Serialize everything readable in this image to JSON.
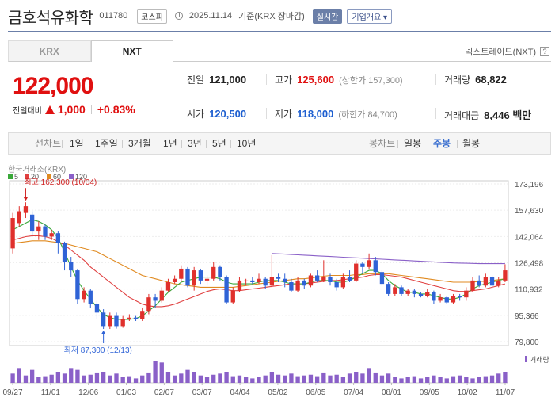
{
  "header": {
    "name": "금호석유화학",
    "code": "011780",
    "market": "코스피",
    "date": "2025.11.14",
    "basis": "기준(KRX 장마감)",
    "realtime": "실시간",
    "company_info": "기업개요 ▾"
  },
  "tabs": [
    {
      "label": "KRX"
    },
    {
      "label": "NXT"
    }
  ],
  "nxt_label": "넥스트레이드(NXT)",
  "help": "?",
  "price": {
    "current": "122,000",
    "change_label": "전일대비",
    "change": "1,000",
    "change_pct": "+0.83%"
  },
  "stats": {
    "prev_label": "전일",
    "prev": "121,000",
    "high_label": "고가",
    "high": "125,600",
    "upper_limit": "(상한가 157,300)",
    "volume_label": "거래량",
    "volume": "68,822",
    "open_label": "시가",
    "open": "120,500",
    "low_label": "저가",
    "low": "118,000",
    "lower_limit": "(하한가 84,700)",
    "amount_label": "거래대금",
    "amount": "8,446 백만"
  },
  "period": {
    "line_label": "선차트",
    "items": [
      "1일",
      "1주일",
      "3개월",
      "1년",
      "3년",
      "5년",
      "10년"
    ],
    "candle_label": "봉차트",
    "candle_items": [
      "일봉",
      "주봉",
      "월봉"
    ],
    "candle_selected": "주봉"
  },
  "colors": {
    "up": "#e0302c",
    "down": "#2f63d6",
    "ma5": "#3aa83a",
    "ma20": "#e04040",
    "ma60": "#e08a20",
    "ma120": "#8a60c8",
    "volume": "#8a60c8",
    "accent": "#6b7fa8"
  },
  "chart_data": {
    "type": "candlestick",
    "source_label": "한국거래소(KRX)",
    "legend": [
      "5",
      "20",
      "60",
      "120"
    ],
    "y_ticks": [
      "173,196",
      "157,630",
      "142,064",
      "126,498",
      "110,932",
      "95,366",
      "79,800"
    ],
    "ylim": [
      79800,
      173196
    ],
    "x_ticks": [
      "09/27",
      "11/01",
      "12/06",
      "01/03",
      "02/07",
      "03/07",
      "04/04",
      "05/02",
      "06/05",
      "07/04",
      "08/01",
      "09/05",
      "10/02",
      "11/07"
    ],
    "high_label": "최고 162,300 (10/04)",
    "low_label": "최저 87,300 (12/13)",
    "volume_label": "거래량",
    "candles": [
      [
        135000,
        153000,
        132000,
        156000
      ],
      [
        150000,
        157000,
        148000,
        160000
      ],
      [
        156000,
        160000,
        153000,
        162300
      ],
      [
        155000,
        145000,
        143000,
        157000
      ],
      [
        145000,
        148000,
        140000,
        151000
      ],
      [
        148000,
        142000,
        140000,
        149000
      ],
      [
        142000,
        144000,
        140000,
        146000
      ],
      [
        144000,
        138000,
        132000,
        145000
      ],
      [
        138000,
        127000,
        122000,
        139000
      ],
      [
        127000,
        122000,
        118000,
        130000
      ],
      [
        122000,
        105000,
        102000,
        123000
      ],
      [
        105000,
        110000,
        103000,
        112000
      ],
      [
        110000,
        102000,
        100000,
        111000
      ],
      [
        102000,
        97000,
        93000,
        104000
      ],
      [
        97000,
        89000,
        87300,
        99000
      ],
      [
        89000,
        95000,
        87300,
        97000
      ],
      [
        95000,
        89000,
        87500,
        97000
      ],
      [
        89000,
        93000,
        88000,
        95000
      ],
      [
        93000,
        94000,
        92000,
        96000
      ],
      [
        94000,
        93000,
        92000,
        95000
      ],
      [
        93000,
        98000,
        92000,
        100000
      ],
      [
        98000,
        106000,
        96000,
        108000
      ],
      [
        106000,
        104000,
        100000,
        108000
      ],
      [
        104000,
        110000,
        103000,
        112000
      ],
      [
        110000,
        115000,
        109000,
        117000
      ],
      [
        115000,
        117000,
        114000,
        119000
      ],
      [
        117000,
        123000,
        115000,
        125000
      ],
      [
        123000,
        113000,
        112000,
        124000
      ],
      [
        113000,
        122000,
        110000,
        124000
      ],
      [
        122000,
        116000,
        114000,
        123000
      ],
      [
        116000,
        117000,
        113000,
        119000
      ],
      [
        117000,
        124000,
        116000,
        127000
      ],
      [
        124000,
        118000,
        116000,
        125000
      ],
      [
        118000,
        103000,
        102000,
        119000
      ],
      [
        103000,
        110000,
        102000,
        112000
      ],
      [
        110000,
        116000,
        109000,
        118000
      ],
      [
        116000,
        116000,
        113000,
        117000
      ],
      [
        116000,
        115000,
        114000,
        118000
      ],
      [
        115000,
        117000,
        114000,
        120000
      ],
      [
        117000,
        113000,
        111000,
        118000
      ],
      [
        113000,
        118000,
        112000,
        131000
      ],
      [
        118000,
        117000,
        115000,
        120000
      ],
      [
        117000,
        115000,
        112000,
        120000
      ],
      [
        115000,
        110000,
        109000,
        117000
      ],
      [
        110000,
        116000,
        109000,
        118000
      ],
      [
        116000,
        113000,
        111000,
        117000
      ],
      [
        113000,
        119000,
        112000,
        120000
      ],
      [
        119000,
        116000,
        115000,
        122000
      ],
      [
        116000,
        118000,
        115000,
        128000
      ],
      [
        118000,
        115000,
        113000,
        120000
      ],
      [
        115000,
        112000,
        110000,
        117000
      ],
      [
        112000,
        118000,
        111000,
        120000
      ],
      [
        118000,
        116000,
        115000,
        122000
      ],
      [
        116000,
        126000,
        115000,
        128000
      ],
      [
        126000,
        124000,
        120000,
        127000
      ],
      [
        124000,
        128000,
        123000,
        132000
      ],
      [
        128000,
        121000,
        119000,
        130000
      ],
      [
        121000,
        114000,
        113000,
        122000
      ],
      [
        114000,
        108000,
        107000,
        115000
      ],
      [
        108000,
        112000,
        107000,
        114000
      ],
      [
        112000,
        108000,
        107000,
        113000
      ],
      [
        108000,
        110000,
        107000,
        111000
      ],
      [
        110000,
        108000,
        106000,
        111000
      ],
      [
        108000,
        107000,
        106000,
        109000
      ],
      [
        107000,
        109000,
        106000,
        111000
      ],
      [
        109000,
        104000,
        102000,
        110000
      ],
      [
        104000,
        106000,
        103000,
        108000
      ],
      [
        106000,
        103000,
        102000,
        107000
      ],
      [
        103000,
        107000,
        102000,
        108000
      ],
      [
        107000,
        106000,
        104000,
        108000
      ],
      [
        106000,
        110000,
        104000,
        112000
      ],
      [
        110000,
        116000,
        109000,
        118000
      ],
      [
        116000,
        113000,
        112000,
        119000
      ],
      [
        113000,
        118000,
        112000,
        120000
      ],
      [
        118000,
        113000,
        111000,
        119000
      ],
      [
        113000,
        116000,
        112000,
        118000
      ],
      [
        116000,
        122000,
        115000,
        125600
      ]
    ],
    "ma5": [
      146000,
      148000,
      150000,
      152000,
      151000,
      149000,
      146000,
      141000,
      133000,
      124000,
      116000,
      110000,
      105000,
      100000,
      96000,
      94000,
      93000,
      93000,
      93000,
      93500,
      95000,
      98000,
      101000,
      105000,
      109000,
      112000,
      115000,
      116000,
      117000,
      118000,
      118000,
      118000,
      117000,
      115000,
      114000,
      114000,
      114000,
      114000,
      115000,
      116000,
      116000,
      116000,
      115000,
      114000,
      114000,
      114000,
      115000,
      116000,
      116000,
      116000,
      115000,
      115000,
      116000,
      118000,
      120000,
      122000,
      122000,
      120000,
      116000,
      113000,
      111000,
      109000,
      109000,
      108000,
      108000,
      107000,
      106000,
      105000,
      105000,
      106000,
      108000,
      111000,
      113000,
      114000,
      115000,
      116000,
      117000
    ],
    "ma20": [
      140000,
      141000,
      142000,
      142500,
      142500,
      142000,
      141000,
      139000,
      137000,
      134000,
      131000,
      128000,
      124000,
      121000,
      118000,
      115000,
      112000,
      109000,
      106000,
      104000,
      102000,
      101000,
      100500,
      100500,
      101000,
      102000,
      103500,
      105000,
      106500,
      108000,
      109500,
      110500,
      111000,
      110500,
      110000,
      110000,
      110500,
      111000,
      111500,
      112000,
      112500,
      113000,
      113500,
      114000,
      114000,
      114000,
      114500,
      115000,
      115500,
      116000,
      116000,
      116500,
      117000,
      117500,
      118000,
      119000,
      119500,
      119500,
      119000,
      118500,
      118000,
      117000,
      116000,
      115000,
      114000,
      113000,
      112000,
      111000,
      110000,
      109500,
      109500,
      110000,
      110500,
      111000,
      112000,
      113000,
      114000
    ],
    "ma60": [
      138000,
      138500,
      139000,
      139500,
      139500,
      139500,
      139000,
      138500,
      138000,
      137000,
      136000,
      135000,
      134000,
      133000,
      131000,
      129000,
      127000,
      125000,
      123000,
      121000,
      119000,
      118000,
      117000,
      116000,
      115000,
      114000,
      113500,
      113000,
      112500,
      112000,
      112000,
      112000,
      112000,
      112000,
      112000,
      112500,
      113000,
      113500,
      114000,
      114500,
      115000,
      115500,
      116000,
      116500,
      117000,
      117000,
      117500,
      118000,
      118500,
      119000,
      119000,
      119000,
      119000,
      119500,
      119500,
      120000,
      120000,
      120000,
      120000,
      119500,
      119000,
      118500,
      118000,
      117500,
      117000,
      116500,
      116000,
      115500,
      115000,
      115000,
      115000,
      115000,
      115500,
      115500,
      116000,
      116500,
      117000
    ],
    "ma120": [
      null,
      null,
      null,
      null,
      null,
      null,
      null,
      null,
      null,
      null,
      null,
      null,
      null,
      null,
      null,
      null,
      null,
      null,
      null,
      null,
      null,
      null,
      null,
      null,
      null,
      null,
      null,
      null,
      null,
      null,
      null,
      null,
      null,
      null,
      null,
      null,
      null,
      null,
      null,
      null,
      132000,
      131800,
      131600,
      131400,
      131200,
      131000,
      130800,
      130600,
      130400,
      130200,
      130000,
      129800,
      129600,
      129400,
      129200,
      129000,
      128800,
      128600,
      128400,
      128200,
      128000,
      127800,
      127600,
      127400,
      127200,
      127000,
      126800,
      126600,
      126400,
      126300,
      126200,
      126100,
      126000,
      126000,
      126000,
      126000,
      126000
    ],
    "volumes": [
      25,
      40,
      20,
      35,
      15,
      18,
      22,
      30,
      25,
      40,
      35,
      20,
      22,
      28,
      30,
      20,
      25,
      15,
      18,
      12,
      20,
      28,
      60,
      55,
      30,
      20,
      25,
      35,
      30,
      20,
      15,
      22,
      25,
      30,
      18,
      20,
      15,
      12,
      15,
      20,
      30,
      22,
      20,
      25,
      18,
      20,
      22,
      18,
      28,
      20,
      22,
      15,
      25,
      30,
      25,
      40,
      28,
      20,
      25,
      15,
      12,
      15,
      18,
      12,
      15,
      20,
      15,
      12,
      18,
      20,
      15,
      12,
      15,
      18,
      20,
      25,
      30
    ]
  }
}
